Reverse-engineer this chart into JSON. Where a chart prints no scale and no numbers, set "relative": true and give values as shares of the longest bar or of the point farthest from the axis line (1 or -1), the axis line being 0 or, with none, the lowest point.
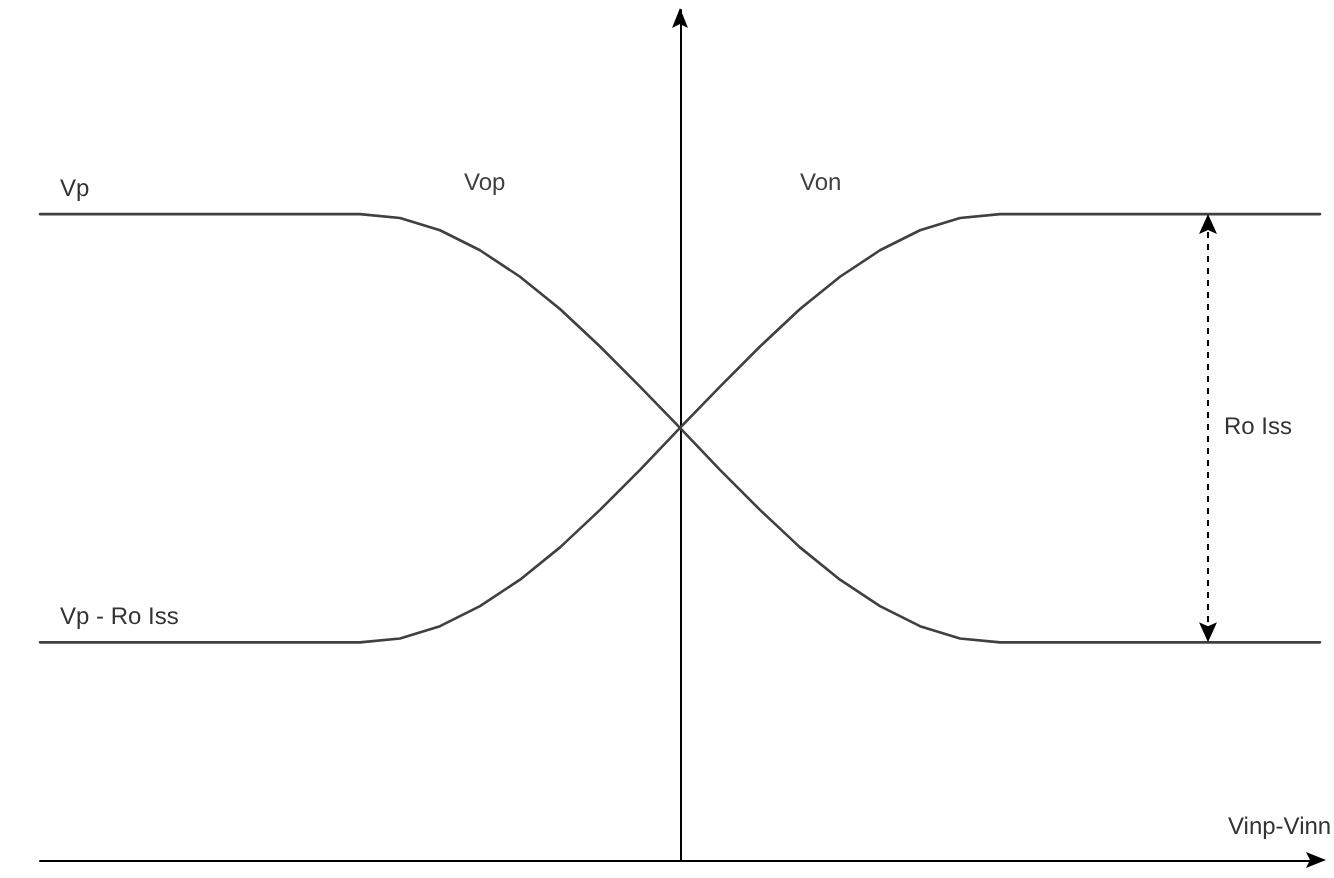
{
  "chart_data": {
    "type": "line",
    "relative": true,
    "xlabel": "Vinp-Vinn",
    "marker": "none",
    "line_style": "solid",
    "categories": [
      null,
      null,
      null,
      null,
      null,
      null,
      null,
      null,
      null,
      null,
      null,
      null,
      null,
      null,
      null,
      null,
      null,
      null,
      null,
      null,
      null,
      null,
      null,
      null,
      null,
      null,
      null,
      null,
      null,
      null,
      null,
      null,
      null
    ],
    "series": [
      {
        "name": "Vop",
        "color": "#404040",
        "values": [
          1,
          1,
          1,
          1,
          1,
          1,
          1,
          1,
          1,
          0.994,
          0.975,
          0.944,
          0.903,
          0.853,
          0.795,
          0.733,
          0.669,
          0.604,
          0.542,
          0.484,
          0.434,
          0.393,
          0.362,
          0.343,
          0.337,
          0.337,
          0.337,
          0.337,
          0.337,
          0.337,
          0.337,
          0.337,
          0.337
        ]
      },
      {
        "name": "Von",
        "color": "#404040",
        "values": [
          0.337,
          0.337,
          0.337,
          0.337,
          0.337,
          0.337,
          0.337,
          0.337,
          0.337,
          0.343,
          0.362,
          0.393,
          0.434,
          0.484,
          0.542,
          0.604,
          0.669,
          0.733,
          0.795,
          0.853,
          0.903,
          0.944,
          0.975,
          0.994,
          1,
          1,
          1,
          1,
          1,
          1,
          1,
          1,
          1
        ]
      }
    ],
    "annotations": [
      "Vp",
      "Vp - Ro Iss",
      "Ro Iss"
    ]
  }
}
